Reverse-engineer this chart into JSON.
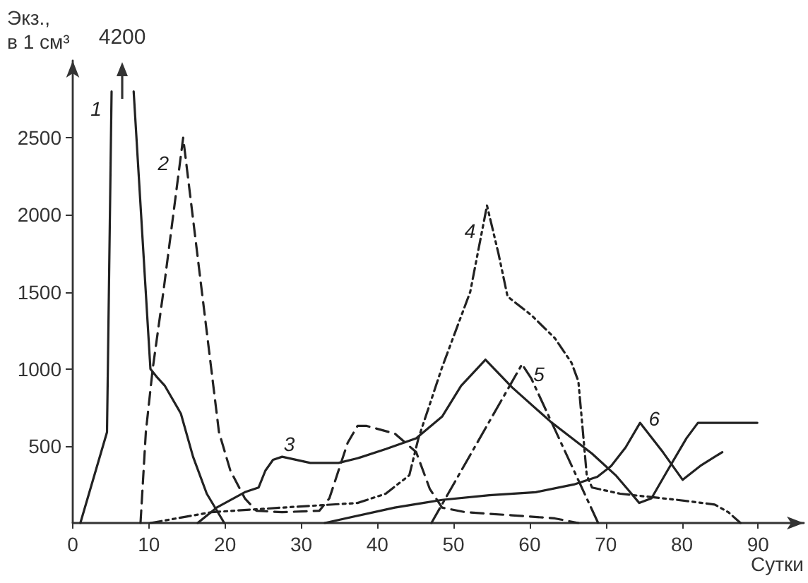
{
  "chart_data": {
    "type": "line",
    "xlabel": "Сутки",
    "ylabel": "Экз.,\nв 1 см³",
    "xlim": [
      0,
      96
    ],
    "ylim": [
      0,
      3000
    ],
    "xticks": [
      0,
      10,
      20,
      30,
      40,
      50,
      60,
      70,
      80,
      90
    ],
    "yticks": [
      500,
      1000,
      1500,
      2000,
      2500
    ],
    "grid": false,
    "marker": "none",
    "annotations": [
      "4200"
    ],
    "series": [
      {
        "name": "1",
        "color": "#222222",
        "line_style": "solid",
        "x": [
          1,
          4.5,
          5.1,
          6.5,
          8,
          10.2,
          11,
          12.1,
          14.2,
          15.8,
          17.6,
          19.9
        ],
        "values": [
          0,
          590,
          2800,
          null,
          2800,
          1000,
          950,
          890,
          710,
          430,
          190,
          0
        ]
      },
      {
        "name": "2",
        "color": "#222222",
        "line_style": "dashed",
        "x": [
          8.9,
          9.6,
          10.5,
          11.9,
          13.2,
          14.5,
          19.2,
          20.7,
          22.6,
          24.1,
          27.5,
          32.4,
          33.7,
          34.9,
          36.1,
          37.4,
          38.6,
          42.3,
          45.1,
          46.9,
          48.5,
          51.6,
          57.7,
          63.3,
          66.4
        ],
        "values": [
          0,
          590,
          1000,
          1500,
          2000,
          2500,
          590,
          340,
          160,
          80,
          70,
          80,
          160,
          340,
          520,
          630,
          630,
          580,
          460,
          220,
          100,
          70,
          50,
          30,
          0
        ]
      },
      {
        "name": "3",
        "color": "#222222",
        "line_style": "solid",
        "x": [
          16.4,
          18.9,
          22.6,
          24.4,
          25.3,
          26.3,
          27.5,
          31.2,
          34.9,
          37.4,
          41.1,
          45.1,
          48.5,
          51,
          54.2,
          57.7,
          62.7,
          68.2,
          71.3,
          73.2,
          74.4,
          76,
          78.1,
          80.6,
          82.1,
          85.5,
          89.9
        ],
        "values": [
          0,
          100,
          200,
          230,
          340,
          410,
          430,
          390,
          390,
          420,
          480,
          550,
          690,
          890,
          1060,
          880,
          660,
          450,
          310,
          200,
          130,
          160,
          340,
          550,
          650,
          650,
          650
        ]
      },
      {
        "name": "4",
        "color": "#222222",
        "line_style": "dashdotdot",
        "x": [
          10.2,
          18.2,
          27.5,
          37.4,
          41.1,
          44.2,
          45.4,
          48.5,
          52.2,
          54.4,
          55.9,
          57.1,
          60.2,
          63.3,
          65.5,
          66.4,
          67,
          67.5,
          68.2,
          71.9,
          79.4,
          84.3,
          86.1,
          87.7
        ],
        "values": [
          0,
          70,
          100,
          130,
          190,
          310,
          550,
          1010,
          1500,
          2060,
          1750,
          1470,
          1350,
          1200,
          1040,
          920,
          590,
          310,
          230,
          190,
          150,
          120,
          70,
          0
        ]
      },
      {
        "name": "5",
        "color": "#222222",
        "line_style": "dashdot",
        "x": [
          47.1,
          59,
          60.2,
          69
        ],
        "values": [
          0,
          1030,
          940,
          0
        ]
      },
      {
        "name": "6",
        "color": "#222222",
        "line_style": "solid",
        "x": [
          33.1,
          42.3,
          46,
          48.5,
          54.7,
          60.8,
          65.8,
          68.9,
          70.7,
          72.6,
          74.5,
          77.5,
          80.1,
          82.4,
          85.3
        ],
        "values": [
          0,
          100,
          130,
          150,
          180,
          200,
          250,
          300,
          370,
          490,
          650,
          460,
          280,
          370,
          460
        ]
      }
    ]
  }
}
